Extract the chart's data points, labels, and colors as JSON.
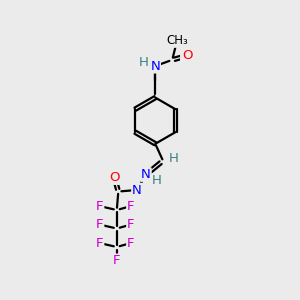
{
  "bg_color": "#ebebeb",
  "atom_colors": {
    "C": "#000000",
    "H": "#3a8080",
    "N": "#0000ff",
    "O": "#ff0000",
    "F": "#cc00cc"
  },
  "bond_color": "#000000",
  "figsize": [
    3.0,
    3.0
  ],
  "dpi": 100
}
